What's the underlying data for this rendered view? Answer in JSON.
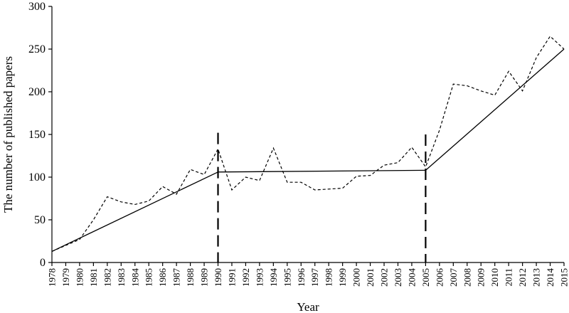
{
  "chart_data": {
    "type": "line",
    "title": "",
    "xlabel": "Year",
    "ylabel": "The number of published papers",
    "ylim": [
      0,
      300
    ],
    "yticks": [
      0,
      50,
      100,
      150,
      200,
      250,
      300
    ],
    "grid": false,
    "legend": "none",
    "x": [
      1978,
      1979,
      1980,
      1981,
      1982,
      1983,
      1984,
      1985,
      1986,
      1987,
      1988,
      1989,
      1990,
      1991,
      1992,
      1993,
      1994,
      1995,
      1996,
      1997,
      1998,
      1999,
      2000,
      2001,
      2002,
      2003,
      2004,
      2005,
      2006,
      2007,
      2008,
      2009,
      2010,
      2011,
      2012,
      2013,
      2014,
      2015
    ],
    "series": [
      {
        "style": "dashed",
        "values": [
          13,
          20,
          27,
          50,
          77,
          71,
          68,
          72,
          89,
          80,
          109,
          103,
          133,
          85,
          100,
          96,
          134,
          94,
          94,
          85,
          86,
          87,
          101,
          102,
          114,
          117,
          135,
          112,
          155,
          209,
          207,
          201,
          196,
          224,
          201,
          240,
          265,
          250
        ]
      }
    ],
    "trend_lines": [
      {
        "style": "solid",
        "points": [
          [
            1978,
            13
          ],
          [
            1990,
            106
          ]
        ]
      },
      {
        "style": "solid",
        "points": [
          [
            1990,
            106
          ],
          [
            2005,
            108
          ]
        ]
      },
      {
        "style": "solid",
        "points": [
          [
            2005,
            108
          ],
          [
            2015,
            250
          ]
        ]
      }
    ],
    "breakpoints": [
      {
        "x": 1990,
        "y_top": 152
      },
      {
        "x": 2005,
        "y_top": 150
      }
    ],
    "colors": {
      "line": "#000000",
      "background": "#ffffff"
    }
  }
}
